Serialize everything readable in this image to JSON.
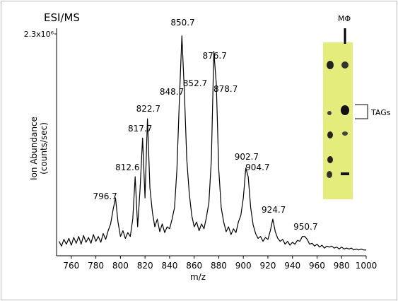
{
  "chart_data": {
    "type": "line",
    "title": "ESI/MS",
    "xlabel": "m/z",
    "ylabel": [
      "Ion Abundance",
      "(counts/sec)"
    ],
    "xlim": [
      748,
      1000
    ],
    "xticks": [
      760,
      780,
      800,
      820,
      840,
      860,
      880,
      900,
      920,
      940,
      960,
      980,
      1000
    ],
    "ylim": [
      0,
      2300000
    ],
    "yticks": [
      {
        "value": 2300000,
        "label": "2.3x10⁶"
      }
    ],
    "x": [
      750,
      752,
      754,
      756,
      758,
      760,
      762,
      764,
      766,
      768,
      770,
      772,
      774,
      776,
      778,
      780,
      782,
      784,
      786,
      788,
      790,
      792,
      794,
      796,
      798,
      800,
      802,
      804,
      806,
      808,
      810,
      812,
      814,
      816,
      818,
      820,
      822,
      824,
      826,
      828,
      830,
      832,
      834,
      836,
      838,
      840,
      842,
      844,
      846,
      848,
      850,
      852,
      854,
      856,
      858,
      860,
      862,
      864,
      866,
      868,
      870,
      872,
      874,
      876,
      878,
      880,
      882,
      884,
      886,
      888,
      890,
      892,
      894,
      896,
      898,
      900,
      902,
      904,
      906,
      908,
      910,
      912,
      914,
      916,
      918,
      920,
      922,
      924,
      926,
      928,
      930,
      932,
      934,
      936,
      938,
      940,
      942,
      944,
      946,
      948,
      950,
      952,
      954,
      956,
      958,
      960,
      962,
      964,
      966,
      968,
      970,
      972,
      974,
      976,
      978,
      980,
      982,
      984,
      986,
      988,
      990,
      992,
      994,
      996,
      998,
      1000
    ],
    "series": [
      {
        "color": "#000000",
        "values": [
          150000,
          100000,
          170000,
          120000,
          180000,
          110000,
          190000,
          130000,
          200000,
          120000,
          210000,
          140000,
          190000,
          130000,
          220000,
          150000,
          200000,
          140000,
          230000,
          170000,
          260000,
          330000,
          480000,
          600000,
          350000,
          200000,
          260000,
          180000,
          240000,
          200000,
          380000,
          820000,
          300000,
          700000,
          1220000,
          600000,
          1420000,
          700000,
          450000,
          300000,
          380000,
          250000,
          330000,
          240000,
          300000,
          280000,
          380000,
          500000,
          900000,
          1630000,
          2280000,
          1700000,
          1000000,
          650000,
          420000,
          300000,
          350000,
          260000,
          330000,
          280000,
          400000,
          550000,
          1000000,
          2120000,
          1780000,
          900000,
          500000,
          350000,
          250000,
          300000,
          220000,
          280000,
          240000,
          350000,
          420000,
          600000,
          910000,
          820000,
          500000,
          320000,
          230000,
          180000,
          200000,
          150000,
          190000,
          170000,
          260000,
          380000,
          250000,
          180000,
          150000,
          170000,
          120000,
          150000,
          110000,
          140000,
          120000,
          160000,
          150000,
          200000,
          200000,
          170000,
          120000,
          130000,
          100000,
          120000,
          90000,
          110000,
          80000,
          100000,
          90000,
          100000,
          80000,
          90000,
          70000,
          90000,
          70000,
          80000,
          70000,
          80000,
          60000,
          70000,
          60000,
          70000,
          60000,
          60000
        ]
      }
    ],
    "peak_labels": [
      850.7,
      876.7,
      848.7,
      852.7,
      878.7,
      822.7,
      817.7,
      812.6,
      796.7,
      902.7,
      904.7,
      924.7,
      950.7
    ],
    "inset_labels": {
      "lane": "MΦ",
      "band": "TAGs"
    }
  }
}
